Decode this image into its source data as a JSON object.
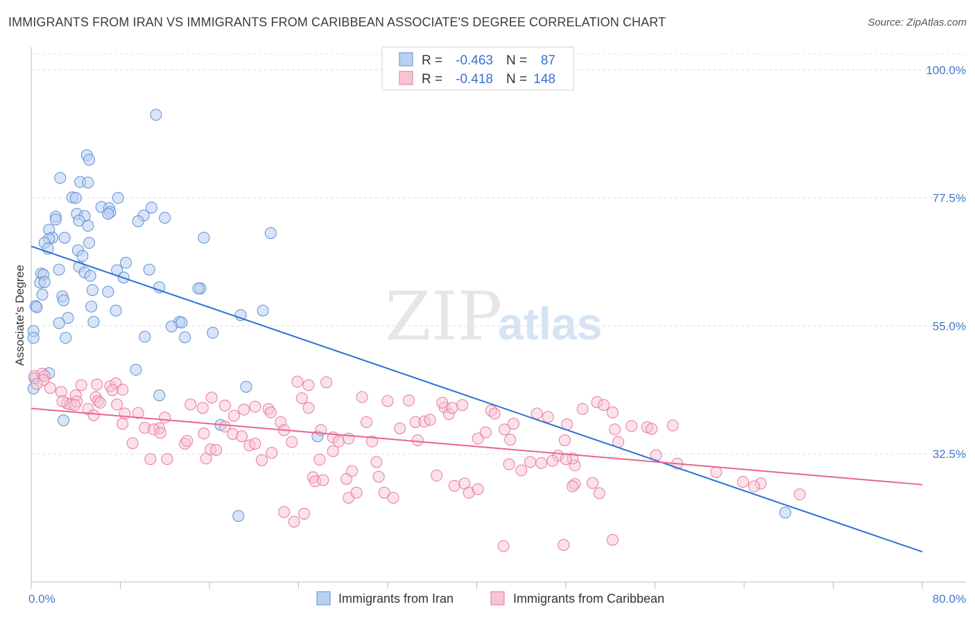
{
  "title": "IMMIGRANTS FROM IRAN VS IMMIGRANTS FROM CARIBBEAN ASSOCIATE'S DEGREE CORRELATION CHART",
  "source": "Source: ZipAtlas.com",
  "watermark": {
    "zip": "ZIP",
    "atlas": "atlas"
  },
  "legend_top": {
    "r_label": "R =",
    "n_label": "N =",
    "rows": [
      {
        "r": "-0.463",
        "n": "87",
        "color": "#6a9fe0"
      },
      {
        "r": "-0.418",
        "n": "148",
        "color": "#f080a8"
      }
    ]
  },
  "legend_bottom": [
    {
      "label": "Immigrants from Iran",
      "color": "#6a9fe0"
    },
    {
      "label": "Immigrants from Caribbean",
      "color": "#f080a8"
    }
  ],
  "colors": {
    "iran_fill": "#b9d0f0",
    "iran_stroke": "#5b8fd6",
    "iran_line": "#2a6fd6",
    "carib_fill": "#f7c4d6",
    "carib_stroke": "#e6799e",
    "carib_line": "#e8648f"
  },
  "chart_data": {
    "type": "scatter",
    "title": "IMMIGRANTS FROM IRAN VS IMMIGRANTS FROM CARIBBEAN ASSOCIATE'S DEGREE CORRELATION CHART",
    "xlabel": "",
    "ylabel": "Associate's Degree",
    "xlim": [
      0,
      80
    ],
    "ylim": [
      10,
      104
    ],
    "x_tick_labels": [
      "0.0%",
      "80.0%"
    ],
    "y_ticks": [
      32.5,
      55.0,
      77.5,
      100.0
    ],
    "y_tick_labels": [
      "32.5%",
      "55.0%",
      "77.5%",
      "100.0%"
    ],
    "grid": true,
    "series": [
      {
        "name": "Immigrants from Iran",
        "R": -0.463,
        "N": 87,
        "trend": {
          "x": [
            0,
            80
          ],
          "y": [
            69.0,
            15.3
          ]
        },
        "points": [
          [
            11.2,
            92.1
          ],
          [
            5.0,
            85.0
          ],
          [
            5.2,
            84.2
          ],
          [
            2.6,
            81.0
          ],
          [
            4.4,
            80.3
          ],
          [
            5.1,
            80.2
          ],
          [
            3.7,
            77.6
          ],
          [
            4.0,
            77.5
          ],
          [
            7.8,
            77.5
          ],
          [
            6.3,
            75.9
          ],
          [
            7.0,
            75.7
          ],
          [
            10.8,
            75.8
          ],
          [
            7.1,
            75.0
          ],
          [
            4.1,
            74.7
          ],
          [
            4.8,
            74.3
          ],
          [
            6.9,
            74.7
          ],
          [
            10.1,
            74.4
          ],
          [
            12.0,
            74.0
          ],
          [
            2.2,
            74.2
          ],
          [
            2.2,
            73.7
          ],
          [
            4.3,
            73.5
          ],
          [
            9.6,
            73.4
          ],
          [
            5.1,
            72.6
          ],
          [
            1.6,
            71.9
          ],
          [
            21.5,
            71.3
          ],
          [
            15.5,
            70.5
          ],
          [
            1.9,
            70.5
          ],
          [
            1.6,
            70.3
          ],
          [
            3.0,
            70.5
          ],
          [
            1.2,
            69.6
          ],
          [
            5.2,
            69.6
          ],
          [
            1.5,
            68.6
          ],
          [
            4.2,
            68.3
          ],
          [
            4.6,
            67.3
          ],
          [
            8.5,
            66.1
          ],
          [
            4.3,
            65.4
          ],
          [
            2.5,
            64.9
          ],
          [
            7.7,
            64.8
          ],
          [
            10.6,
            64.9
          ],
          [
            0.9,
            64.2
          ],
          [
            1.1,
            64.0
          ],
          [
            4.8,
            64.4
          ],
          [
            5.3,
            63.8
          ],
          [
            8.3,
            63.5
          ],
          [
            0.8,
            62.6
          ],
          [
            1.2,
            62.7
          ],
          [
            11.5,
            61.8
          ],
          [
            15.2,
            61.6
          ],
          [
            15.0,
            61.6
          ],
          [
            5.5,
            61.3
          ],
          [
            6.9,
            61.0
          ],
          [
            1.0,
            60.5
          ],
          [
            2.8,
            60.2
          ],
          [
            2.9,
            59.5
          ],
          [
            0.4,
            58.5
          ],
          [
            0.5,
            58.3
          ],
          [
            5.4,
            58.4
          ],
          [
            7.6,
            57.7
          ],
          [
            20.8,
            57.7
          ],
          [
            18.8,
            56.9
          ],
          [
            3.3,
            56.4
          ],
          [
            2.5,
            55.5
          ],
          [
            5.6,
            55.7
          ],
          [
            13.3,
            55.7
          ],
          [
            13.5,
            55.6
          ],
          [
            12.6,
            54.9
          ],
          [
            16.3,
            53.8
          ],
          [
            0.2,
            54.1
          ],
          [
            10.2,
            53.1
          ],
          [
            13.8,
            53.0
          ],
          [
            3.1,
            52.9
          ],
          [
            0.2,
            52.9
          ],
          [
            9.4,
            47.3
          ],
          [
            1.6,
            46.7
          ],
          [
            0.3,
            45.8
          ],
          [
            0.2,
            44.0
          ],
          [
            19.3,
            44.3
          ],
          [
            11.5,
            42.8
          ],
          [
            2.9,
            38.4
          ],
          [
            17.0,
            37.6
          ],
          [
            25.7,
            35.6
          ],
          [
            18.6,
            21.6
          ],
          [
            67.7,
            22.2
          ]
        ]
      },
      {
        "name": "Immigrants from Caribbean",
        "R": -0.418,
        "N": 148,
        "trend": {
          "x": [
            0,
            80
          ],
          "y": [
            40.5,
            27.1
          ]
        },
        "points": [
          [
            0.3,
            46.2
          ],
          [
            1.0,
            46.6
          ],
          [
            1.2,
            46.2
          ],
          [
            1.1,
            45.5
          ],
          [
            0.5,
            44.8
          ],
          [
            1.7,
            44.1
          ],
          [
            4.5,
            44.6
          ],
          [
            5.9,
            44.7
          ],
          [
            7.1,
            44.4
          ],
          [
            7.6,
            44.9
          ],
          [
            7.3,
            43.7
          ],
          [
            8.2,
            43.8
          ],
          [
            2.7,
            43.4
          ],
          [
            4.0,
            42.8
          ],
          [
            5.8,
            42.5
          ],
          [
            3.2,
            41.4
          ],
          [
            3.5,
            41.2
          ],
          [
            4.1,
            41.7
          ],
          [
            2.8,
            41.8
          ],
          [
            6.0,
            41.8
          ],
          [
            6.2,
            41.5
          ],
          [
            7.7,
            41.2
          ],
          [
            5.1,
            40.4
          ],
          [
            3.9,
            41.1
          ],
          [
            5.6,
            39.3
          ],
          [
            8.4,
            39.6
          ],
          [
            9.6,
            39.7
          ],
          [
            8.2,
            37.8
          ],
          [
            12.0,
            38.9
          ],
          [
            11.5,
            37.0
          ],
          [
            10.2,
            37.1
          ],
          [
            11.0,
            36.8
          ],
          [
            11.6,
            36.2
          ],
          [
            9.1,
            34.4
          ],
          [
            10.7,
            31.6
          ],
          [
            12.2,
            31.6
          ],
          [
            13.8,
            34.3
          ],
          [
            14.0,
            34.8
          ],
          [
            15.5,
            36.1
          ],
          [
            15.7,
            31.7
          ],
          [
            16.1,
            33.3
          ],
          [
            16.6,
            33.2
          ],
          [
            17.4,
            37.3
          ],
          [
            18.1,
            36.0
          ],
          [
            18.9,
            35.6
          ],
          [
            19.6,
            34.0
          ],
          [
            20.1,
            34.3
          ],
          [
            20.7,
            31.4
          ],
          [
            16.2,
            42.4
          ],
          [
            14.3,
            41.2
          ],
          [
            15.4,
            40.6
          ],
          [
            17.4,
            41.0
          ],
          [
            19.1,
            40.3
          ],
          [
            20.1,
            40.8
          ],
          [
            21.3,
            40.4
          ],
          [
            21.5,
            39.8
          ],
          [
            22.4,
            38.1
          ],
          [
            18.2,
            39.2
          ],
          [
            22.7,
            36.7
          ],
          [
            23.4,
            34.6
          ],
          [
            21.6,
            32.7
          ],
          [
            23.9,
            45.2
          ],
          [
            24.9,
            44.6
          ],
          [
            26.5,
            45.1
          ],
          [
            24.3,
            42.3
          ],
          [
            24.9,
            40.6
          ],
          [
            26.0,
            36.7
          ],
          [
            27.1,
            35.4
          ],
          [
            27.6,
            34.7
          ],
          [
            28.5,
            35.2
          ],
          [
            27.1,
            33.0
          ],
          [
            25.9,
            31.5
          ],
          [
            22.7,
            22.3
          ],
          [
            23.6,
            20.6
          ],
          [
            24.5,
            22.0
          ],
          [
            25.3,
            28.4
          ],
          [
            25.5,
            27.7
          ],
          [
            26.2,
            27.9
          ],
          [
            28.3,
            28.1
          ],
          [
            28.8,
            29.5
          ],
          [
            28.5,
            24.8
          ],
          [
            29.2,
            25.7
          ],
          [
            29.7,
            42.5
          ],
          [
            30.1,
            38.1
          ],
          [
            30.6,
            34.7
          ],
          [
            31.0,
            31.1
          ],
          [
            31.2,
            28.5
          ],
          [
            31.7,
            25.7
          ],
          [
            32.5,
            24.8
          ],
          [
            32.0,
            41.8
          ],
          [
            33.1,
            37.0
          ],
          [
            34.5,
            38.1
          ],
          [
            33.9,
            41.9
          ],
          [
            34.7,
            34.9
          ],
          [
            35.3,
            38.2
          ],
          [
            35.8,
            38.5
          ],
          [
            36.4,
            28.7
          ],
          [
            37.1,
            40.7
          ],
          [
            37.5,
            39.5
          ],
          [
            36.9,
            41.5
          ],
          [
            37.8,
            40.6
          ],
          [
            38.7,
            41.1
          ],
          [
            38.0,
            26.9
          ],
          [
            38.9,
            27.3
          ],
          [
            39.3,
            25.7
          ],
          [
            40.1,
            26.3
          ],
          [
            40.1,
            35.2
          ],
          [
            40.8,
            36.3
          ],
          [
            41.3,
            40.1
          ],
          [
            41.6,
            39.6
          ],
          [
            42.5,
            36.8
          ],
          [
            43.3,
            37.8
          ],
          [
            43.0,
            35.0
          ],
          [
            42.9,
            30.7
          ],
          [
            44.0,
            29.6
          ],
          [
            45.4,
            39.6
          ],
          [
            46.4,
            39.0
          ],
          [
            48.1,
            37.7
          ],
          [
            47.9,
            34.9
          ],
          [
            47.3,
            32.2
          ],
          [
            48.8,
            30.5
          ],
          [
            48.8,
            27.2
          ],
          [
            48.6,
            26.8
          ],
          [
            48.6,
            31.7
          ],
          [
            50.4,
            27.4
          ],
          [
            51.0,
            25.6
          ],
          [
            42.4,
            16.3
          ],
          [
            47.8,
            16.5
          ],
          [
            44.8,
            31.1
          ],
          [
            45.8,
            30.9
          ],
          [
            46.8,
            31.3
          ],
          [
            48.0,
            31.6
          ],
          [
            49.5,
            40.4
          ],
          [
            50.8,
            41.6
          ],
          [
            51.4,
            41.1
          ],
          [
            52.2,
            39.8
          ],
          [
            52.4,
            36.8
          ],
          [
            52.7,
            34.6
          ],
          [
            53.9,
            37.4
          ],
          [
            55.3,
            37.2
          ],
          [
            55.7,
            36.9
          ],
          [
            57.6,
            37.5
          ],
          [
            56.1,
            32.3
          ],
          [
            58.0,
            30.8
          ],
          [
            61.5,
            29.3
          ],
          [
            63.9,
            27.6
          ],
          [
            65.5,
            27.3
          ],
          [
            64.9,
            26.8
          ],
          [
            69.0,
            25.4
          ],
          [
            52.2,
            17.4
          ]
        ]
      }
    ]
  }
}
